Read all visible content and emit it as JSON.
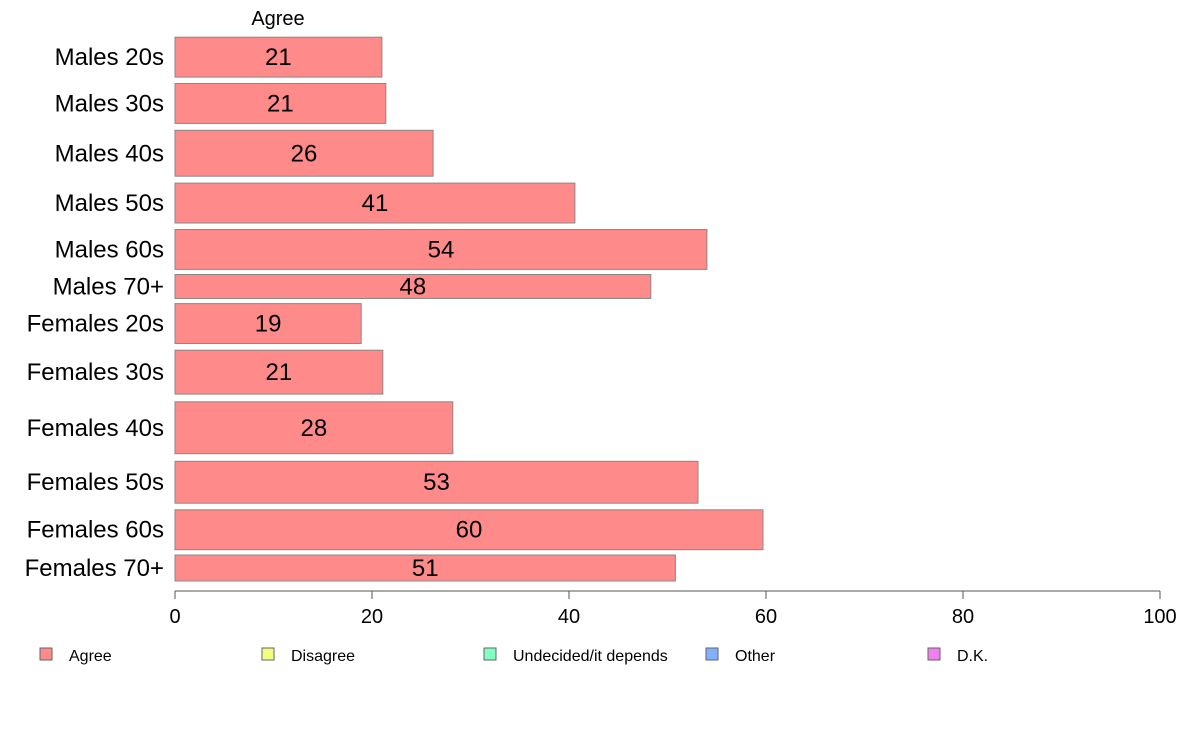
{
  "chart_data": {
    "type": "bar",
    "orientation": "horizontal",
    "stacked": true,
    "column_header": "Agree",
    "categories": [
      "Males 20s",
      "Males 30s",
      "Males 40s",
      "Males 50s",
      "Males 60s",
      "Males 70+",
      "Females 20s",
      "Females 30s",
      "Females 40s",
      "Females 50s",
      "Females 60s",
      "Females 70+"
    ],
    "bar_values": [
      21,
      21.4,
      26.2,
      40.6,
      54,
      48.3,
      18.9,
      21.1,
      28.2,
      53.1,
      59.7,
      50.8
    ],
    "value_labels": [
      "21",
      "21",
      "26",
      "41",
      "54",
      "48",
      "19",
      "21",
      "28",
      "53",
      "60",
      "51"
    ],
    "relative_bar_widths": [
      1.0,
      1.0,
      1.15,
      1.0,
      1.0,
      0.6,
      1.0,
      1.1,
      1.3,
      1.05,
      1.0,
      0.65
    ],
    "series": [
      {
        "name": "Agree",
        "color": "#ff8a8a"
      },
      {
        "name": "Disagree",
        "color": "#f0ff80"
      },
      {
        "name": "Undecided/it depends",
        "color": "#80ffc0"
      },
      {
        "name": "Other",
        "color": "#80b0ff"
      },
      {
        "name": "D.K.",
        "color": "#f080f0"
      }
    ],
    "xlim": [
      0,
      100
    ],
    "xticks": [
      0,
      20,
      40,
      60,
      80,
      100
    ],
    "xlabel": "",
    "ylabel": "",
    "grid": false,
    "legend_position": "bottom"
  }
}
